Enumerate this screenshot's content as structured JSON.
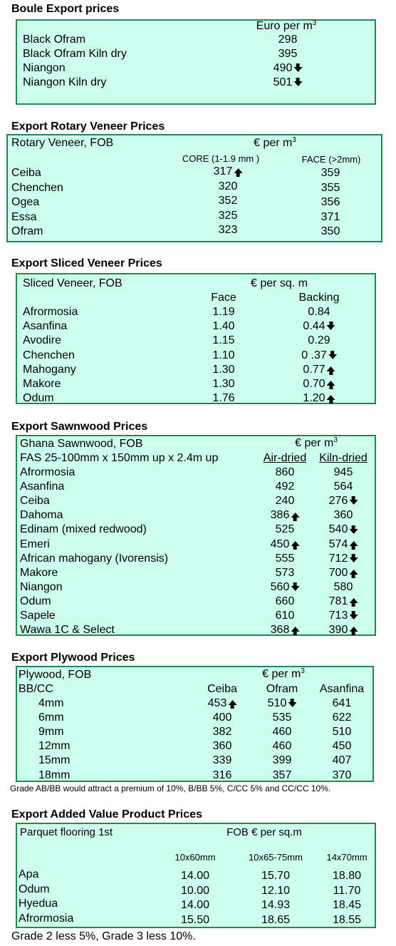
{
  "boule": {
    "title": "Boule Export prices",
    "unit": "Euro per m",
    "unit_sup": "3",
    "rows": [
      {
        "name": "Black Ofram",
        "price": "298",
        "trend": ""
      },
      {
        "name": "Black Ofram  Kiln dry",
        "price": "395",
        "trend": ""
      },
      {
        "name": "Niangon",
        "price": "490",
        "trend": "down"
      },
      {
        "name": "Niangon Kiln dry",
        "price": "501",
        "trend": "down"
      }
    ]
  },
  "rotary": {
    "title": "Export Rotary Veneer Prices",
    "label": "Rotary Veneer,  FOB",
    "unit": "€  per m",
    "unit_sup": "3",
    "col1": "CORE (1-1.9 mm )",
    "col2": "FACE (>2mm)",
    "rows": [
      {
        "name": "Ceiba",
        "core": "317",
        "core_trend": "up",
        "face": "359"
      },
      {
        "name": "Chenchen",
        "core": "320",
        "core_trend": "",
        "face": "355"
      },
      {
        "name": "Ogea",
        "core": "352",
        "core_trend": "",
        "face": "356"
      },
      {
        "name": "Essa",
        "core": "325",
        "core_trend": "",
        "face": "371"
      },
      {
        "name": "Ofram",
        "core": "323",
        "core_trend": "",
        "face": "350"
      }
    ]
  },
  "sliced": {
    "title": "Export Sliced Veneer Prices",
    "label": "Sliced Veneer, FOB",
    "unit": "€ per sq. m",
    "col1": "Face",
    "col2": "Backing",
    "rows": [
      {
        "name": "Afrormosia",
        "face": "1.19",
        "backing": "0.84",
        "trend": ""
      },
      {
        "name": "Asanfina",
        "face": "1.40",
        "backing": "0.44",
        "trend": "down"
      },
      {
        "name": "Avodire",
        "face": "1.15",
        "backing": "0.29",
        "trend": ""
      },
      {
        "name": "Chenchen",
        "face": "1.10",
        "backing": "0 .37",
        "trend": "down"
      },
      {
        "name": "Mahogany",
        "face": "1.30",
        "backing": "0.77",
        "trend": "up"
      },
      {
        "name": "Makore",
        "face": "1.30",
        "backing": "0.70",
        "trend": "up"
      },
      {
        "name": "Odum",
        "face": "1.76",
        "backing": "1.20",
        "trend": "up"
      }
    ]
  },
  "sawn": {
    "title": "Export Sawnwood Prices",
    "label": "Ghana Sawnwood, FOB",
    "unit": "€ per m",
    "unit_sup": "3",
    "spec": "FAS 25-100mm x 150mm up x 2.4m up",
    "col1": "Air-dried",
    "col2": "Kiln-dried",
    "rows": [
      {
        "name": "Afrormosia",
        "air": "860",
        "air_trend": "",
        "kiln": "945",
        "kiln_trend": ""
      },
      {
        "name": "Asanfina",
        "air": "492",
        "air_trend": "",
        "kiln": "564",
        "kiln_trend": ""
      },
      {
        "name": "Ceiba",
        "air": "240",
        "air_trend": "",
        "kiln": "276",
        "kiln_trend": "down"
      },
      {
        "name": "Dahoma",
        "air": "386",
        "air_trend": "up",
        "kiln": "360",
        "kiln_trend": ""
      },
      {
        "name": "Edinam (mixed redwood)",
        "air": "525",
        "air_trend": "",
        "kiln": "540",
        "kiln_trend": "down"
      },
      {
        "name": "Emeri",
        "air": "450",
        "air_trend": "up",
        "kiln": "574",
        "kiln_trend": "up"
      },
      {
        "name": "African mahogany (Ivorensis)",
        "air": "555",
        "air_trend": "",
        "kiln": "712",
        "kiln_trend": "down"
      },
      {
        "name": "Makore",
        "air": "573",
        "air_trend": "",
        "kiln": "700",
        "kiln_trend": "up"
      },
      {
        "name": "Niangon",
        "air": "560",
        "air_trend": "down",
        "kiln": "580",
        "kiln_trend": ""
      },
      {
        "name": "Odum",
        "air": "660",
        "air_trend": "",
        "kiln": "781",
        "kiln_trend": "up"
      },
      {
        "name": "Sapele",
        "air": "610",
        "air_trend": "",
        "kiln": "713",
        "kiln_trend": "down"
      },
      {
        "name": "Wawa 1C & Select",
        "air": "368",
        "air_trend": "up",
        "kiln": "390",
        "kiln_trend": "up"
      }
    ]
  },
  "plywood": {
    "title": "Export Plywood Prices",
    "label": "Plywood, FOB",
    "unit": "€ per m",
    "unit_sup": "3",
    "grade": "BB/CC",
    "col1": "Ceiba",
    "col2": "Ofram",
    "col3": "Asanfina",
    "rows": [
      {
        "size": "4mm",
        "ceiba": "453",
        "ceiba_trend": "up",
        "ofram": "510",
        "ofram_trend": "down",
        "asanfina": "641"
      },
      {
        "size": "6mm",
        "ceiba": "400",
        "ceiba_trend": "",
        "ofram": "535",
        "ofram_trend": "",
        "asanfina": "622"
      },
      {
        "size": "9mm",
        "ceiba": "382",
        "ceiba_trend": "",
        "ofram": "460",
        "ofram_trend": "",
        "asanfina": "510"
      },
      {
        "size": "12mm",
        "ceiba": "360",
        "ceiba_trend": "",
        "ofram": "460",
        "ofram_trend": "",
        "asanfina": "450"
      },
      {
        "size": "15mm",
        "ceiba": "339",
        "ceiba_trend": "",
        "ofram": "399",
        "ofram_trend": "",
        "asanfina": "407"
      },
      {
        "size": "18mm",
        "ceiba": "316",
        "ceiba_trend": "",
        "ofram": "357",
        "ofram_trend": "",
        "asanfina": "370"
      }
    ],
    "note": "Grade AB/BB would attract a premium of 10%, B/BB 5%, C/CC 5% and CC/CC 10%."
  },
  "added": {
    "title": "Export Added Value Product Prices",
    "label": "Parquet flooring 1st",
    "unit": "FOB € per sq.m",
    "col1": "10x60mm",
    "col2": "10x65-75mm",
    "col3": "14x70mm",
    "rows": [
      {
        "name": "Apa",
        "v1": "14.00",
        "v2": "15.70",
        "v3": "18.80"
      },
      {
        "name": "Odum",
        "v1": "10.00",
        "v2": "12.10",
        "v3": "11.70"
      },
      {
        "name": "Hyedua",
        "v1": "14.00",
        "v2": "14.93",
        "v3": "18.45"
      },
      {
        "name": "Afrormosia",
        "v1": "15.50",
        "v2": "18.65",
        "v3": "18.55"
      }
    ],
    "note": "Grade 2 less 5%, Grade 3 less 10%."
  }
}
